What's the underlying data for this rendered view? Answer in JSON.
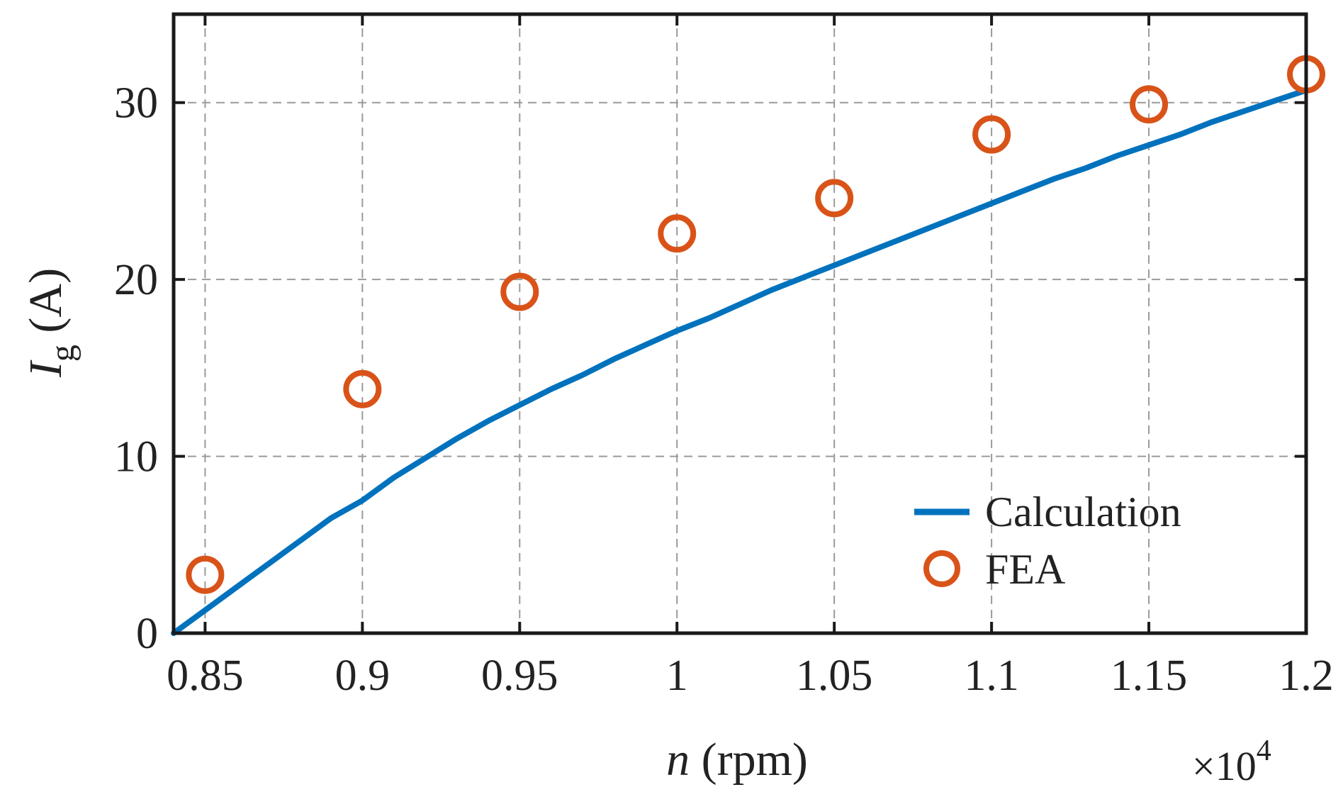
{
  "chart_data": {
    "type": "line",
    "title": "",
    "xlabel_var": "n",
    "xlabel_unit": " (rpm)",
    "ylabel_var": "I",
    "ylabel_sub": "g",
    "ylabel_unit": " (A)",
    "x_multiplier": "×10",
    "x_multiplier_exp": "4",
    "xlim": [
      0.84,
      1.2
    ],
    "ylim": [
      0,
      35
    ],
    "x_ticks": [
      0.85,
      0.9,
      0.95,
      1,
      1.05,
      1.1,
      1.15,
      1.2
    ],
    "x_tick_labels": [
      "0.85",
      "0.9",
      "0.95",
      "1",
      "1.05",
      "1.1",
      "1.15",
      "1.2"
    ],
    "y_ticks": [
      0,
      10,
      20,
      30
    ],
    "y_tick_labels": [
      "0",
      "10",
      "20",
      "30"
    ],
    "grid": true,
    "legend_position": "bottom-right",
    "series": [
      {
        "name": "Calculation",
        "kind": "line",
        "color": "#0072BD",
        "x": [
          0.84,
          0.85,
          0.86,
          0.87,
          0.88,
          0.89,
          0.9,
          0.91,
          0.92,
          0.93,
          0.94,
          0.95,
          0.96,
          0.97,
          0.98,
          0.99,
          1.0,
          1.01,
          1.02,
          1.03,
          1.04,
          1.05,
          1.06,
          1.07,
          1.08,
          1.09,
          1.1,
          1.11,
          1.12,
          1.13,
          1.14,
          1.15,
          1.16,
          1.17,
          1.18,
          1.19,
          1.2
        ],
        "y": [
          0.0,
          1.3,
          2.6,
          3.9,
          5.2,
          6.5,
          7.5,
          8.8,
          9.9,
          11.0,
          12.0,
          12.9,
          13.8,
          14.6,
          15.5,
          16.3,
          17.1,
          17.8,
          18.6,
          19.4,
          20.1,
          20.8,
          21.5,
          22.2,
          22.9,
          23.6,
          24.3,
          25.0,
          25.7,
          26.3,
          27.0,
          27.6,
          28.2,
          28.9,
          29.5,
          30.1,
          30.7
        ]
      },
      {
        "name": "FEA",
        "kind": "marker",
        "color": "#D95319",
        "x": [
          0.85,
          0.9,
          0.95,
          1.0,
          1.05,
          1.1,
          1.15,
          1.2
        ],
        "y": [
          3.3,
          13.8,
          19.3,
          22.6,
          24.6,
          28.2,
          29.9,
          31.6
        ]
      }
    ]
  }
}
